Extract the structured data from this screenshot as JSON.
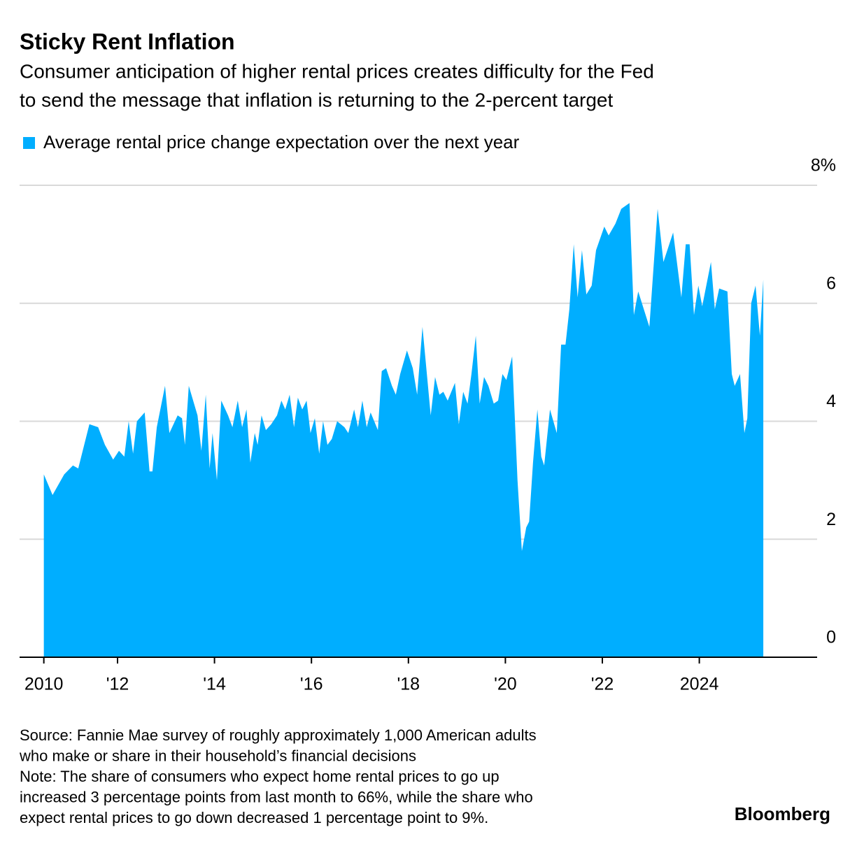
{
  "chart_data": {
    "type": "area",
    "title": "Sticky Rent Inflation",
    "subtitle": [
      "Consumer anticipation of higher rental prices creates difficulty for the Fed",
      "to send the message that inflation is returning to the 2-percent target"
    ],
    "series": [
      {
        "name": "Average rental price change expectation over the next year",
        "color": "#00aeff",
        "x": [
          2010.48,
          2010.66,
          2010.9,
          2011.08,
          2011.19,
          2011.42,
          2011.6,
          2011.74,
          2011.91,
          2012.03,
          2012.14,
          2012.23,
          2012.32,
          2012.4,
          2012.56,
          2012.66,
          2012.72,
          2012.81,
          2012.98,
          2013.07,
          2013.24,
          2013.33,
          2013.39,
          2013.47,
          2013.65,
          2013.73,
          2013.82,
          2013.9,
          2013.96,
          2014.05,
          2014.14,
          2014.28,
          2014.37,
          2014.48,
          2014.57,
          2014.66,
          2014.74,
          2014.83,
          2014.89,
          2014.97,
          2015.06,
          2015.17,
          2015.29,
          2015.38,
          2015.46,
          2015.55,
          2015.64,
          2015.72,
          2015.81,
          2015.9,
          2015.98,
          2016.07,
          2016.16,
          2016.24,
          2016.33,
          2016.42,
          2016.53,
          2016.68,
          2016.76,
          2016.88,
          2016.96,
          2017.05,
          2017.14,
          2017.22,
          2017.37,
          2017.45,
          2017.54,
          2017.66,
          2017.74,
          2017.83,
          2017.97,
          2018.09,
          2018.18,
          2018.29,
          2018.46,
          2018.55,
          2018.64,
          2018.72,
          2018.81,
          2018.96,
          2019.04,
          2019.13,
          2019.22,
          2019.3,
          2019.39,
          2019.47,
          2019.56,
          2019.65,
          2019.76,
          2019.85,
          2019.94,
          2020.02,
          2020.14,
          2020.25,
          2020.34,
          2020.43,
          2020.49,
          2020.57,
          2020.66,
          2020.74,
          2020.8,
          2020.92,
          2021.06,
          2021.15,
          2021.24,
          2021.32,
          2021.41,
          2021.49,
          2021.58,
          2021.67,
          2021.78,
          2021.87,
          2022.04,
          2022.13,
          2022.27,
          2022.39,
          2022.56,
          2022.65,
          2022.74,
          2022.97,
          2023.14,
          2023.26,
          2023.34,
          2023.46,
          2023.63,
          2023.72,
          2023.8,
          2023.89,
          2023.98,
          2024.06,
          2024.24,
          2024.32,
          2024.41,
          2024.58,
          2024.67,
          2024.73,
          2024.84,
          2024.93,
          2024.99,
          2025.07,
          2025.16,
          2025.25,
          2025.32
        ],
        "values": [
          3.1,
          2.75,
          3.1,
          3.25,
          3.2,
          3.95,
          3.9,
          3.6,
          3.35,
          3.5,
          3.4,
          4.0,
          3.45,
          4.0,
          4.15,
          3.15,
          3.15,
          3.9,
          4.6,
          3.8,
          4.1,
          4.05,
          3.6,
          4.6,
          4.1,
          3.5,
          4.45,
          3.2,
          3.8,
          3.0,
          4.35,
          4.1,
          3.9,
          4.35,
          3.9,
          4.2,
          3.3,
          3.8,
          3.6,
          4.1,
          3.85,
          3.95,
          4.1,
          4.35,
          4.2,
          4.45,
          3.9,
          4.4,
          4.2,
          4.35,
          3.8,
          4.05,
          3.45,
          4.0,
          3.6,
          3.7,
          4.0,
          3.9,
          3.8,
          4.2,
          3.9,
          4.35,
          3.9,
          4.15,
          3.85,
          4.85,
          4.9,
          4.6,
          4.45,
          4.8,
          5.2,
          4.9,
          4.45,
          5.6,
          4.1,
          4.75,
          4.45,
          4.5,
          4.35,
          4.65,
          3.95,
          4.5,
          4.3,
          4.8,
          5.45,
          4.3,
          4.75,
          4.6,
          4.3,
          4.35,
          4.8,
          4.7,
          5.1,
          3.0,
          1.8,
          2.2,
          2.3,
          3.3,
          4.2,
          3.4,
          3.25,
          4.2,
          3.8,
          5.3,
          5.3,
          5.9,
          7.0,
          6.1,
          6.9,
          6.15,
          6.3,
          6.9,
          7.3,
          7.15,
          7.35,
          7.6,
          7.7,
          5.8,
          6.2,
          5.6,
          7.6,
          6.7,
          6.9,
          7.2,
          6.1,
          7.0,
          7.0,
          5.8,
          6.3,
          5.95,
          6.7,
          5.9,
          6.25,
          6.2,
          4.8,
          4.6,
          4.8,
          3.8,
          4.05,
          6.0,
          6.3,
          5.45,
          6.4
        ]
      }
    ],
    "xlim": [
      2009.98,
      2026.43
    ],
    "xticks": [
      {
        "value": 2010.48,
        "label": "2010"
      },
      {
        "value": 2012,
        "label": "'12"
      },
      {
        "value": 2014,
        "label": "'14"
      },
      {
        "value": 2016,
        "label": "'16"
      },
      {
        "value": 2018,
        "label": "'18"
      },
      {
        "value": 2020,
        "label": "'20"
      },
      {
        "value": 2022,
        "label": "'22"
      },
      2024
    ],
    "ylim": [
      0,
      8
    ],
    "yticks": [
      0,
      2,
      4,
      6,
      {
        "value": 8,
        "label": "8%"
      }
    ],
    "grid": true,
    "notes": [
      "Source: Fannie Mae survey of roughly approximately 1,000 American adults",
      "who make or share in their household’s financial decisions",
      "Note: The share of consumers who expect home rental prices to go up",
      "increased 3 percentage points from last month to 66%, while the share who",
      "expect rental prices to go down decreased 1 percentage point to 9%."
    ],
    "source_brand": "Bloomberg"
  }
}
